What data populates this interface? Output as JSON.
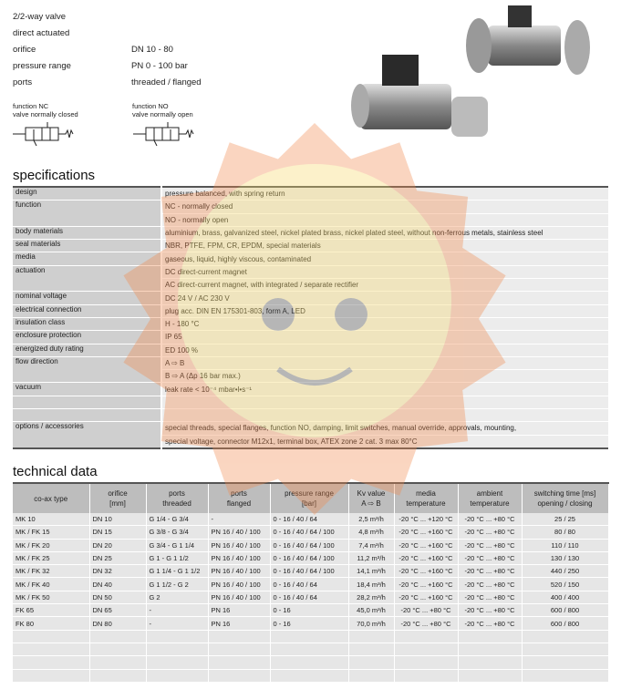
{
  "header": {
    "lines": [
      "2/2-way valve",
      "direct actuated"
    ],
    "properties": [
      [
        "orifice",
        "DN 10 - 80"
      ],
      [
        "pressure range",
        "PN 0 - 100 bar"
      ],
      [
        "ports",
        "threaded / flanged"
      ]
    ],
    "functions": [
      {
        "title": "function NC",
        "subtitle": "valve normally closed"
      },
      {
        "title": "function NO",
        "subtitle": "valve normally open"
      }
    ]
  },
  "specifications": {
    "title": "specifications",
    "rows": [
      {
        "label": "design",
        "values": [
          "pressure balanced, with spring return"
        ]
      },
      {
        "label": "function",
        "values": [
          "NC - normally closed",
          "NO - normally open"
        ]
      },
      {
        "label": "body materials",
        "values": [
          "aluminium, brass, galvanized steel, nickel plated brass, nickel plated steel, without non-ferrous metals, stainless steel"
        ]
      },
      {
        "label": "seal materials",
        "values": [
          "NBR, PTFE, FPM, CR, EPDM, special materials"
        ]
      },
      {
        "label": "media",
        "values": [
          "gaseous, liquid, highly viscous, contaminated"
        ]
      },
      {
        "label": "actuation",
        "values": [
          "DC direct-current magnet",
          "AC direct-current magnet, with integrated / separate rectifier"
        ]
      },
      {
        "label": "nominal voltage",
        "values": [
          "DC 24 V / AC 230 V"
        ]
      },
      {
        "label": "electrical connection",
        "values": [
          "plug acc. DIN EN 175301-803, form A, LED"
        ]
      },
      {
        "label": "insulation class",
        "values": [
          "H - 180 °C"
        ]
      },
      {
        "label": "enclosure protection",
        "values": [
          "IP 65"
        ]
      },
      {
        "label": "energized duty rating",
        "values": [
          "ED 100 %"
        ]
      },
      {
        "label": "flow direction",
        "values": [
          "A ⇨ B",
          "B ⇨ A (Δp 16 bar max.)"
        ]
      },
      {
        "label": "vacuum",
        "values": [
          "leak rate < 10⁻⁴ mbar•l•s⁻¹"
        ]
      },
      {
        "label": "options / accessories",
        "values": [
          "special threads, special flanges, function NO, damping, limit switches, manual override, approvals, mounting,",
          "special voltage, connector M12x1, terminal box, ATEX zone 2 cat. 3 max 80°C"
        ]
      }
    ]
  },
  "technical_data": {
    "title": "technical data",
    "columns": [
      [
        "co-ax type"
      ],
      [
        "orifice",
        "[mm]"
      ],
      [
        "ports",
        "threaded"
      ],
      [
        "ports",
        "flanged"
      ],
      [
        "pressure range",
        "[bar]"
      ],
      [
        "Kv value",
        "A ⇨ B"
      ],
      [
        "media",
        "temperature"
      ],
      [
        "ambient",
        "temperature"
      ],
      [
        "switching time [ms]",
        "opening / closing"
      ]
    ],
    "rows": [
      [
        "MK 10",
        "DN 10",
        "G 1/4 - G 3/4",
        "-",
        "0 - 16 / 40 / 64",
        "2,5 m³/h",
        "-20 °C ... +120 °C",
        "-20 °C ... +80 °C",
        "25 / 25"
      ],
      [
        "MK / FK 15",
        "DN 15",
        "G 3/8 - G 3/4",
        "PN 16 / 40 / 100",
        "0 - 16 / 40 / 64 / 100",
        "4,8 m³/h",
        "-20 °C ... +160 °C",
        "-20 °C ... +80 °C",
        "80 / 80"
      ],
      [
        "MK / FK 20",
        "DN 20",
        "G 3/4 - G 1 1/4",
        "PN 16 / 40 / 100",
        "0 - 16 / 40 / 64 / 100",
        "7,4 m³/h",
        "-20 °C ... +160 °C",
        "-20 °C ... +80 °C",
        "110 / 110"
      ],
      [
        "MK / FK 25",
        "DN 25",
        "G 1 - G 1 1/2",
        "PN 16 / 40 / 100",
        "0 - 16 / 40 / 64 / 100",
        "11,2 m³/h",
        "-20 °C ... +160 °C",
        "-20 °C ... +80 °C",
        "130 / 130"
      ],
      [
        "MK / FK 32",
        "DN 32",
        "G 1 1/4 - G 1 1/2",
        "PN 16 / 40 / 100",
        "0 - 16 / 40 / 64 / 100",
        "14,1 m³/h",
        "-20 °C ... +160 °C",
        "-20 °C ... +80 °C",
        "440 / 250"
      ],
      [
        "MK / FK 40",
        "DN 40",
        "G 1 1/2 - G 2",
        "PN 16 / 40 / 100",
        "0 - 16 / 40 / 64",
        "18,4 m³/h",
        "-20 °C ... +160 °C",
        "-20 °C ... +80 °C",
        "520 / 150"
      ],
      [
        "MK / FK 50",
        "DN 50",
        "G 2",
        "PN 16 / 40 / 100",
        "0 - 16 / 40 / 64",
        "28,2 m³/h",
        "-20 °C ... +160 °C",
        "-20 °C ... +80 °C",
        "400 / 400"
      ],
      [
        "FK 65",
        "DN 65",
        "-",
        "PN 16",
        "0 - 16",
        "45,0 m³/h",
        "-20 °C ... +80 °C",
        "-20 °C ... +80 °C",
        "600 / 800"
      ],
      [
        "FK 80",
        "DN 80",
        "-",
        "PN 16",
        "0 - 16",
        "70,0 m³/h",
        "-20 °C ... +80 °C",
        "-20 °C ... +80 °C",
        "600 / 800"
      ]
    ]
  }
}
